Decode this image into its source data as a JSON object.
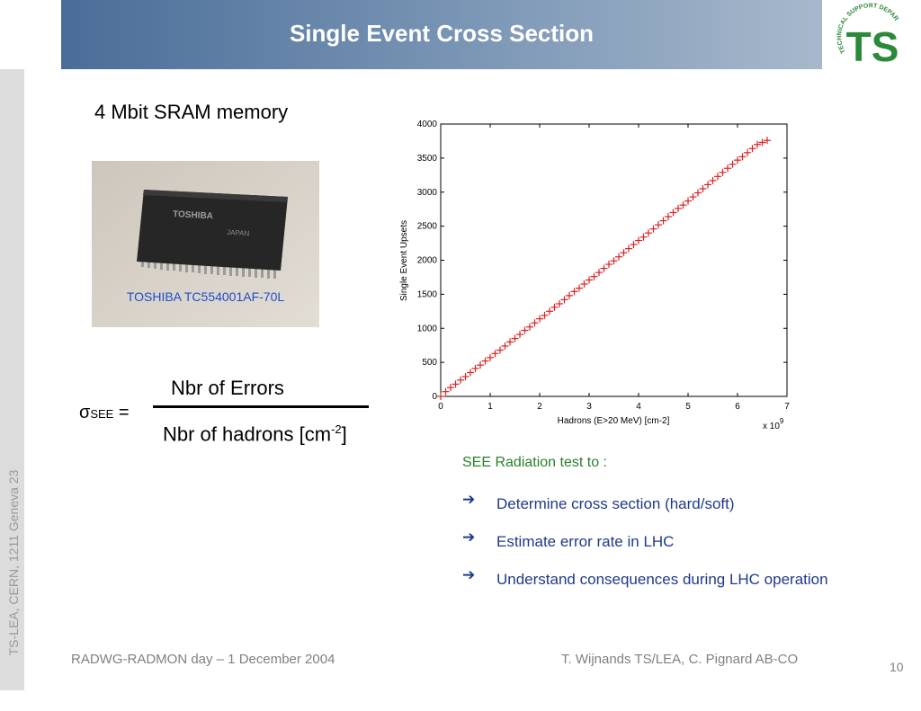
{
  "header": {
    "title": "Single Event Cross Section",
    "color": "#4a6d98"
  },
  "logo": {
    "label": "TECHNICAL SUPPORT DEPARTMENT",
    "letters": "TS",
    "color": "#2a8a3a"
  },
  "sidebar": {
    "text": "TS-LEA, CERN, 1211 Geneva 23"
  },
  "content": {
    "subheading": "4 Mbit SRAM memory",
    "photo": {
      "caption": "TOSHIBA TC554001AF-70L",
      "chip_text": [
        "TOSHIBA",
        "JAPAN"
      ]
    },
    "formula": {
      "sigma": "σ",
      "subscript": "SEE",
      "equals": "=",
      "numerator": "Nbr of Errors",
      "denominator_main": "Nbr of hadrons [cm",
      "denominator_sup": "-2",
      "denominator_end": "]"
    },
    "see_heading": "SEE Radiation test to :",
    "bullets": [
      "Determine cross section (hard/soft)",
      "Estimate error rate in LHC",
      "Understand consequences during LHC operation"
    ],
    "bullet_arrow": "➔"
  },
  "chart_data": {
    "type": "scatter",
    "xlabel": "Hadrons (E>20 MeV) [cm-2]",
    "ylabel": "Single Event Upsets",
    "x_multiplier": "x 10",
    "x_multiplier_exp": "9",
    "xlim": [
      0,
      7
    ],
    "ylim": [
      0,
      4000
    ],
    "xticks": [
      0,
      1,
      2,
      3,
      4,
      5,
      6,
      7
    ],
    "yticks": [
      0,
      500,
      1000,
      1500,
      2000,
      2500,
      3000,
      3500,
      4000
    ],
    "marker": "+",
    "color": "#e02020",
    "series": [
      {
        "x": [
          0,
          0.1,
          0.2,
          0.3,
          0.4,
          0.5,
          0.6,
          0.7,
          0.8,
          0.9,
          1.0,
          1.1,
          1.2,
          1.3,
          1.4,
          1.5,
          1.6,
          1.7,
          1.8,
          1.9,
          2.0,
          2.1,
          2.2,
          2.3,
          2.4,
          2.5,
          2.6,
          2.7,
          2.8,
          2.9,
          3.0,
          3.1,
          3.2,
          3.3,
          3.4,
          3.5,
          3.6,
          3.7,
          3.8,
          3.9,
          4.0,
          4.1,
          4.2,
          4.3,
          4.4,
          4.5,
          4.6,
          4.7,
          4.8,
          4.9,
          5.0,
          5.1,
          5.2,
          5.3,
          5.4,
          5.5,
          5.6,
          5.7,
          5.8,
          5.9,
          6.0,
          6.1,
          6.2,
          6.3,
          6.4,
          6.5,
          6.6
        ],
        "y": [
          0,
          70,
          130,
          180,
          240,
          290,
          350,
          410,
          460,
          520,
          570,
          630,
          680,
          740,
          800,
          850,
          910,
          970,
          1020,
          1080,
          1140,
          1190,
          1250,
          1310,
          1360,
          1420,
          1480,
          1540,
          1590,
          1650,
          1710,
          1760,
          1820,
          1880,
          1940,
          1990,
          2050,
          2110,
          2170,
          2230,
          2290,
          2340,
          2400,
          2460,
          2520,
          2580,
          2640,
          2700,
          2760,
          2810,
          2870,
          2930,
          2990,
          3050,
          3110,
          3170,
          3230,
          3290,
          3350,
          3410,
          3470,
          3520,
          3580,
          3640,
          3700,
          3730,
          3760
        ]
      }
    ]
  },
  "footer": {
    "left": "RADWG-RADMON day – 1 December 2004",
    "middle": "T. Wijnands TS/LEA, C. Pignard AB-CO",
    "page": "10"
  }
}
